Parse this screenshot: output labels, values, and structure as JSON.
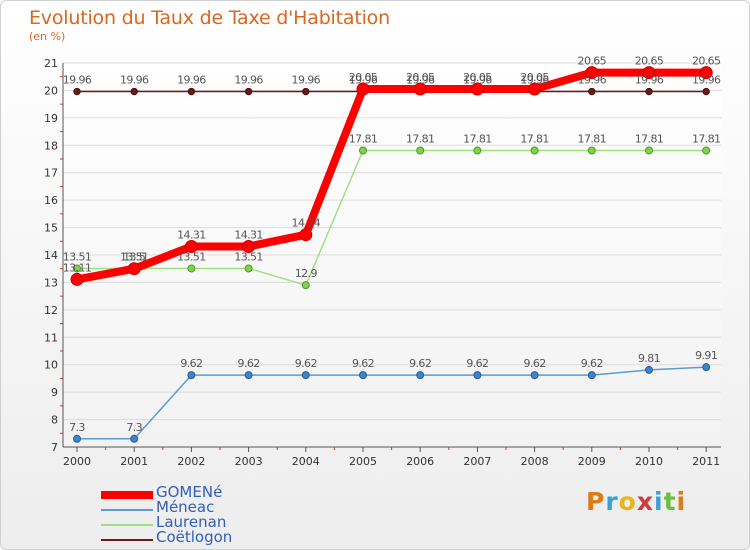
{
  "title": "Evolution du Taux de Taxe d'Habitation",
  "unit_label": "(en %)",
  "brand": "Proxiti",
  "brand_colors": [
    "#e07a18",
    "#3aa0d8",
    "#e8b51a",
    "#d33a3a",
    "#3aa0d8",
    "#6bbf3a",
    "#e07a18"
  ],
  "chart_data": {
    "type": "line",
    "x": [
      "2000",
      "2001",
      "2002",
      "2003",
      "2004",
      "2005",
      "2006",
      "2007",
      "2008",
      "2009",
      "2010",
      "2011"
    ],
    "ylim": [
      7,
      21
    ],
    "yticks": [
      "7",
      "8",
      "9",
      "10",
      "11",
      "12",
      "13",
      "14",
      "15",
      "16",
      "17",
      "18",
      "19",
      "20",
      "21"
    ],
    "grid": "horizontal",
    "legend_position": "bottom-left",
    "series": [
      {
        "name": "Coëtlogon",
        "color": "#6b1a1a",
        "values": [
          19.96,
          19.96,
          19.96,
          19.96,
          19.96,
          19.96,
          19.96,
          19.96,
          19.96,
          19.96,
          19.96,
          19.96
        ],
        "labels": [
          "19.96",
          "19.96",
          "19.96",
          "19.96",
          "19.96",
          "19.96",
          "19.96",
          "19.96",
          "19.96",
          "19.96",
          "19.96",
          "19.96"
        ]
      },
      {
        "name": "Laurenan",
        "color": "#9fe07f",
        "values": [
          13.51,
          13.51,
          13.51,
          13.51,
          12.9,
          17.81,
          17.81,
          17.81,
          17.81,
          17.81,
          17.81,
          17.81
        ],
        "labels": [
          "13.51",
          "13.51",
          "13.51",
          "13.51",
          "12.9",
          "17.81",
          "17.81",
          "17.81",
          "17.81",
          "17.81",
          "17.81",
          "17.81"
        ]
      },
      {
        "name": "Méneac",
        "color": "#5b9bd5",
        "values": [
          7.3,
          7.3,
          9.62,
          9.62,
          9.62,
          9.62,
          9.62,
          9.62,
          9.62,
          9.62,
          9.81,
          9.91
        ],
        "labels": [
          "7.3",
          "7.3",
          "9.62",
          "9.62",
          "9.62",
          "9.62",
          "9.62",
          "9.62",
          "9.62",
          "9.62",
          "9.81",
          "9.91"
        ]
      },
      {
        "name": "GOMENé",
        "color": "#ff0000",
        "values": [
          13.11,
          13.5,
          14.31,
          14.31,
          14.74,
          20.05,
          20.05,
          20.05,
          20.05,
          20.65,
          20.65,
          20.65
        ],
        "labels": [
          "13.11",
          "13.5",
          "14.31",
          "14.31",
          "14.74",
          "20.05",
          "20.05",
          "20.05",
          "20.05",
          "20.65",
          "20.65",
          "20.65"
        ]
      }
    ],
    "legend_order": [
      "GOMENé",
      "Méneac",
      "Laurenan",
      "Coëtlogon"
    ]
  }
}
